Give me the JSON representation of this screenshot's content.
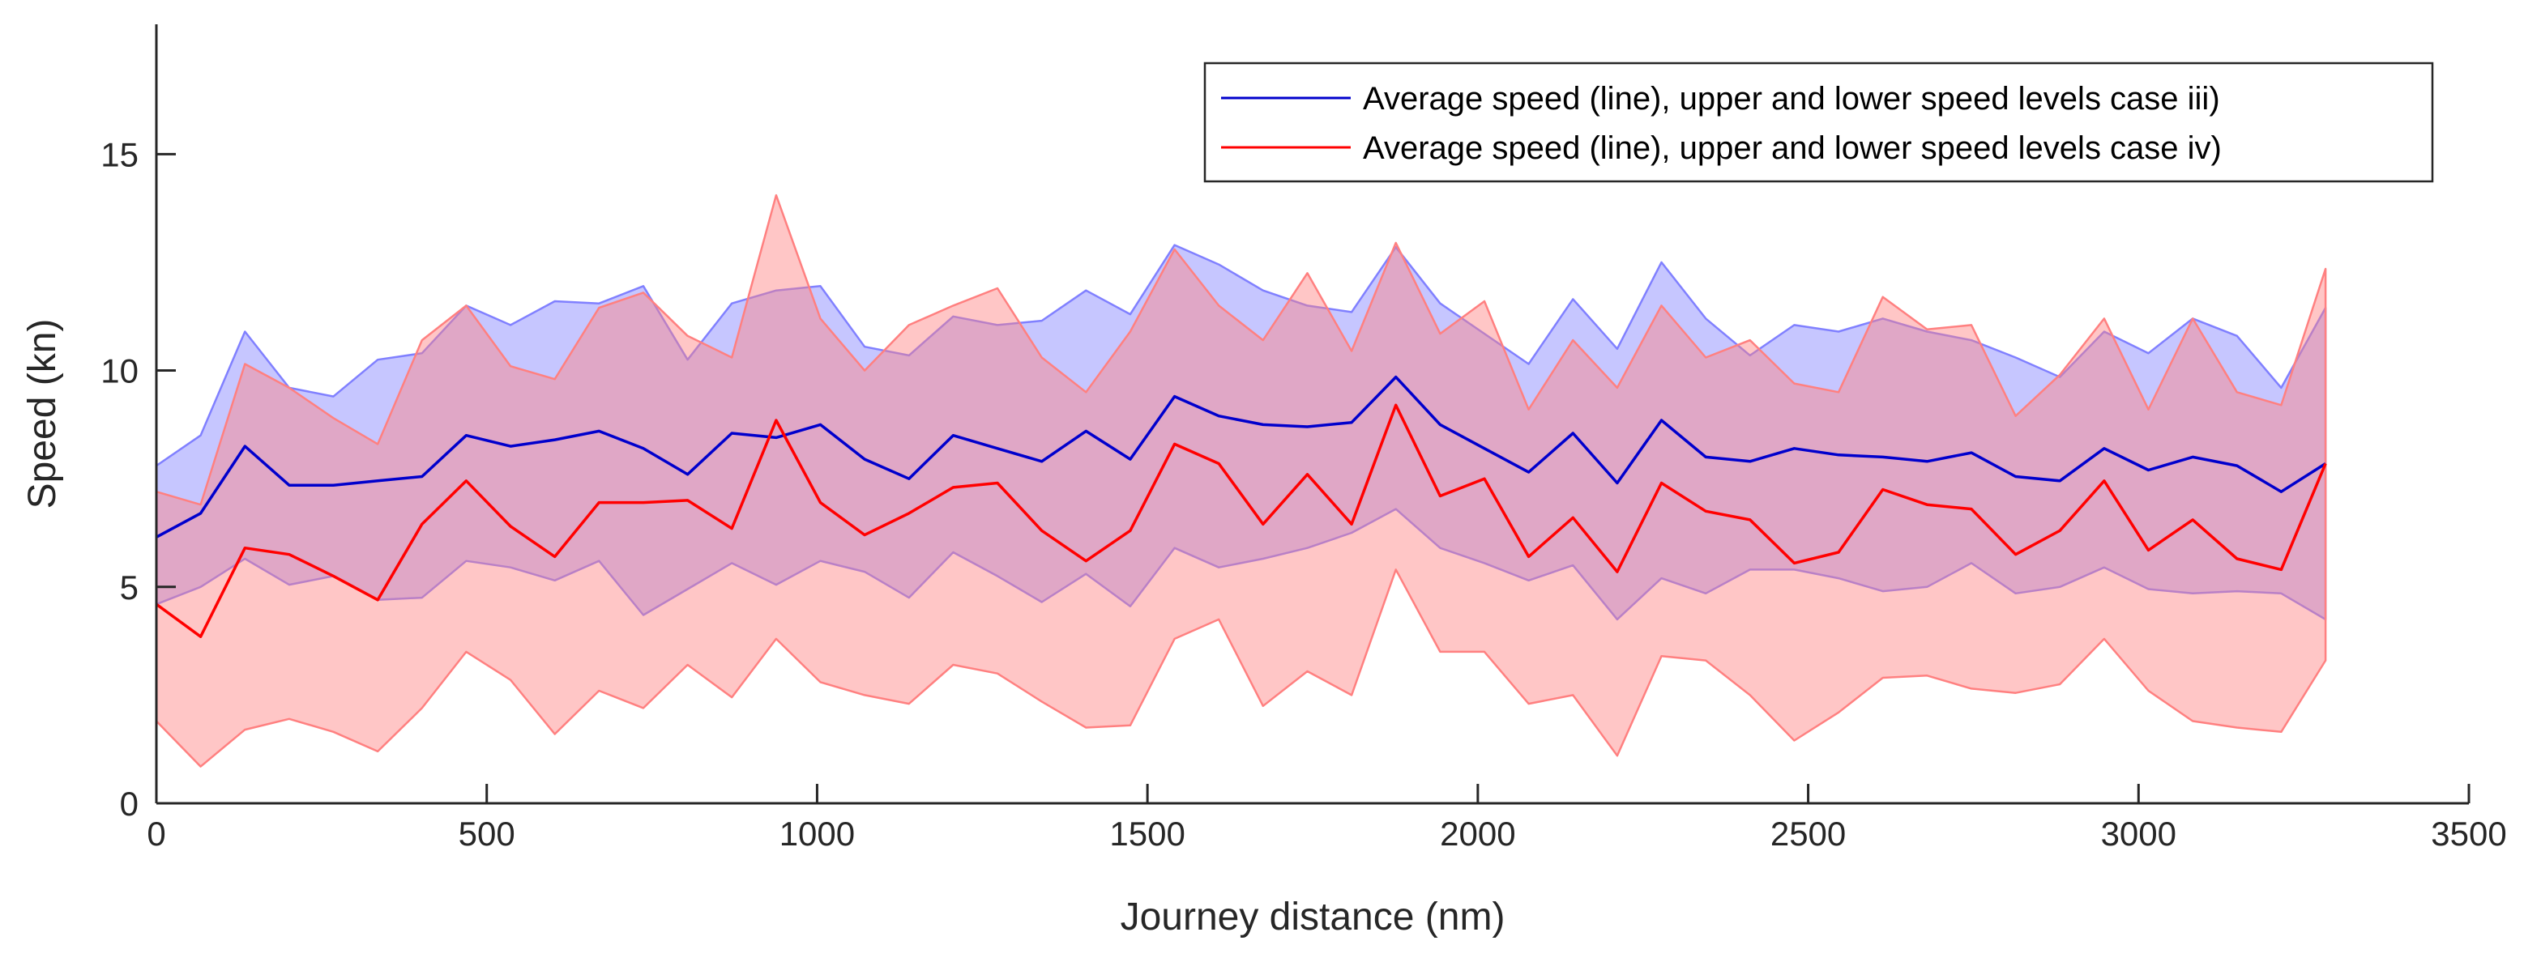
{
  "chart_data": {
    "type": "area",
    "xlabel": "Journey distance (nm)",
    "ylabel": "Speed (kn)",
    "xlim": [
      0,
      3500
    ],
    "ylim": [
      0,
      18
    ],
    "xticks": [
      0,
      500,
      1000,
      1500,
      2000,
      2500,
      3000,
      3500
    ],
    "yticks": [
      0,
      5,
      10,
      15
    ],
    "legend_position": "top-right",
    "x": [
      0,
      67,
      134,
      201,
      268,
      335,
      402,
      469,
      536,
      603,
      670,
      737,
      804,
      871,
      938,
      1005,
      1072,
      1139,
      1206,
      1273,
      1340,
      1407,
      1474,
      1541,
      1608,
      1675,
      1742,
      1809,
      1876,
      1943,
      2010,
      2077,
      2144,
      2211,
      2278,
      2345,
      2412,
      2479,
      2546,
      2613,
      2680,
      2747,
      2814,
      2881,
      2948,
      3015,
      3082,
      3149,
      3216,
      3283
    ],
    "series": [
      {
        "name": "Average speed (line), upper and lower speed levels case iii)",
        "color": "#0000CC",
        "band_color": "#8080FF",
        "band_opacity": 0.45,
        "upper": [
          7.8,
          8.5,
          10.9,
          9.6,
          9.4,
          10.25,
          10.4,
          11.5,
          11.05,
          11.6,
          11.55,
          11.95,
          10.25,
          11.55,
          11.85,
          11.95,
          10.55,
          10.35,
          11.25,
          11.05,
          11.15,
          11.85,
          11.3,
          12.9,
          12.45,
          11.85,
          11.5,
          11.35,
          12.85,
          11.55,
          10.85,
          10.15,
          11.65,
          10.5,
          12.5,
          11.2,
          10.35,
          11.05,
          10.9,
          11.2,
          10.9,
          10.7,
          10.3,
          9.85,
          10.9,
          10.4,
          11.2,
          10.8,
          9.6,
          11.45
        ],
        "mean": [
          6.15,
          6.7,
          8.25,
          7.35,
          7.35,
          7.45,
          7.55,
          8.5,
          8.25,
          8.4,
          8.6,
          8.2,
          7.6,
          8.55,
          8.45,
          8.75,
          7.95,
          7.5,
          8.5,
          8.2,
          7.9,
          8.6,
          7.95,
          9.4,
          8.95,
          8.75,
          8.7,
          8.8,
          9.85,
          8.75,
          8.2,
          7.65,
          8.55,
          7.4,
          8.85,
          8.0,
          7.9,
          8.2,
          8.05,
          8.0,
          7.9,
          8.1,
          7.55,
          7.45,
          8.2,
          7.7,
          8.0,
          7.8,
          7.2,
          7.85
        ],
        "lower": [
          4.6,
          5.0,
          5.65,
          5.05,
          5.25,
          4.7,
          4.75,
          5.6,
          5.45,
          5.15,
          5.6,
          4.35,
          4.95,
          5.55,
          5.05,
          5.6,
          5.35,
          4.75,
          5.8,
          5.25,
          4.65,
          5.3,
          4.55,
          5.9,
          5.45,
          5.65,
          5.9,
          6.25,
          6.8,
          5.9,
          5.55,
          5.15,
          5.5,
          4.25,
          5.2,
          4.85,
          5.4,
          5.4,
          5.2,
          4.9,
          5.0,
          5.55,
          4.85,
          5.0,
          5.45,
          4.95,
          4.85,
          4.9,
          4.85,
          4.25
        ]
      },
      {
        "name": "Average speed (line), upper and lower speed levels case iv)",
        "color": "#FF0000",
        "band_color": "#FF8080",
        "band_opacity": 0.45,
        "upper": [
          7.2,
          6.9,
          10.15,
          9.6,
          8.9,
          8.3,
          10.7,
          11.5,
          10.1,
          9.8,
          11.45,
          11.8,
          10.8,
          10.3,
          14.05,
          11.2,
          10.0,
          11.05,
          11.5,
          11.9,
          10.3,
          9.5,
          10.9,
          12.8,
          11.5,
          10.7,
          12.25,
          10.45,
          12.95,
          10.85,
          11.6,
          9.1,
          10.7,
          9.6,
          11.5,
          10.3,
          10.7,
          9.7,
          9.5,
          11.7,
          10.95,
          11.05,
          8.95,
          9.9,
          11.2,
          9.1,
          11.2,
          9.5,
          9.2,
          12.35
        ],
        "mean": [
          4.6,
          3.85,
          5.9,
          5.75,
          5.25,
          4.7,
          6.45,
          7.45,
          6.4,
          5.7,
          6.95,
          6.95,
          7.0,
          6.35,
          8.85,
          6.95,
          6.2,
          6.7,
          7.3,
          7.4,
          6.3,
          5.6,
          6.3,
          8.3,
          7.85,
          6.45,
          7.6,
          6.45,
          9.2,
          7.1,
          7.5,
          5.7,
          6.6,
          5.35,
          7.4,
          6.75,
          6.55,
          5.55,
          5.8,
          7.25,
          6.9,
          6.8,
          5.75,
          6.3,
          7.45,
          5.85,
          6.55,
          5.65,
          5.4,
          7.85
        ],
        "lower": [
          1.9,
          0.85,
          1.7,
          1.95,
          1.65,
          1.2,
          2.2,
          3.5,
          2.85,
          1.6,
          2.6,
          2.2,
          3.2,
          2.45,
          3.8,
          2.8,
          2.5,
          2.3,
          3.2,
          3.0,
          2.35,
          1.75,
          1.8,
          3.8,
          4.25,
          2.25,
          3.05,
          2.5,
          5.4,
          3.5,
          3.5,
          2.3,
          2.5,
          1.1,
          3.4,
          3.3,
          2.5,
          1.45,
          2.1,
          2.9,
          2.95,
          2.65,
          2.55,
          2.75,
          3.8,
          2.6,
          1.9,
          1.75,
          1.65,
          3.3
        ]
      }
    ]
  }
}
